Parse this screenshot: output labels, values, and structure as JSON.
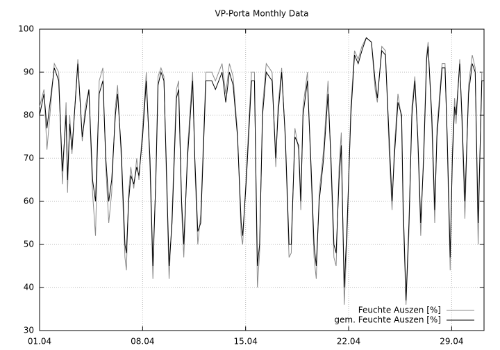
{
  "chart_data": {
    "type": "line",
    "title": "VP-Porta Monthly Data",
    "x": [
      0,
      0.3,
      0.5,
      1.0,
      1.3,
      1.55,
      1.8,
      1.9,
      2.05,
      2.2,
      2.6,
      2.9,
      3.1,
      3.35,
      3.6,
      3.8,
      4.05,
      4.3,
      4.5,
      4.7,
      4.9,
      5.15,
      5.3,
      5.55,
      5.8,
      5.9,
      6.05,
      6.2,
      6.4,
      6.6,
      6.75,
      7.0,
      7.25,
      7.5,
      7.7,
      7.9,
      8.05,
      8.25,
      8.45,
      8.6,
      8.8,
      9.0,
      9.3,
      9.45,
      9.65,
      9.8,
      10.05,
      10.4,
      10.55,
      10.75,
      10.95,
      11.3,
      11.7,
      11.95,
      12.4,
      12.65,
      12.9,
      13.15,
      13.45,
      13.7,
      13.8,
      14.05,
      14.4,
      14.6,
      14.8,
      14.95,
      15.15,
      15.4,
      15.6,
      15.8,
      16.05,
      16.2,
      16.45,
      16.7,
      16.95,
      17.1,
      17.35,
      17.6,
      17.75,
      17.9,
      18.2,
      18.45,
      18.65,
      18.8,
      19.0,
      19.3,
      19.6,
      19.8,
      20.0,
      20.15,
      20.35,
      20.5,
      20.7,
      20.9,
      21.15,
      21.4,
      21.65,
      21.9,
      22.2,
      22.55,
      22.8,
      22.95,
      23.25,
      23.5,
      23.75,
      23.95,
      24.1,
      24.35,
      24.6,
      24.7,
      24.9,
      25.1,
      25.3,
      25.5,
      25.7,
      25.9,
      26.1,
      26.3,
      26.4,
      26.65,
      26.85,
      27.0,
      27.35,
      27.55,
      27.7,
      27.9,
      28.05,
      28.2,
      28.3,
      28.55,
      28.7,
      28.9,
      29.15,
      29.4,
      29.6,
      29.8,
      30.05,
      30.2
    ],
    "series": [
      {
        "name": "Feuchte Auszen [%]",
        "color": "#888888",
        "values": [
          82,
          86,
          72,
          92,
          90,
          64,
          83,
          62,
          80,
          71,
          93,
          74,
          82,
          86,
          62,
          52,
          88,
          91,
          68,
          55,
          62,
          82,
          87,
          70,
          47,
          44,
          62,
          68,
          63,
          70,
          65,
          77,
          90,
          68,
          42,
          66,
          89,
          91,
          89,
          68,
          42,
          57,
          86,
          88,
          58,
          47,
          72,
          90,
          68,
          50,
          57,
          90,
          90,
          88,
          92,
          85,
          92,
          89,
          76,
          52,
          50,
          67,
          90,
          90,
          40,
          48,
          82,
          92,
          91,
          90,
          68,
          82,
          91,
          74,
          47,
          48,
          77,
          72,
          58,
          82,
          90,
          66,
          47,
          42,
          62,
          72,
          88,
          68,
          47,
          45,
          68,
          76,
          36,
          52,
          82,
          95,
          93,
          96,
          98,
          97,
          86,
          83,
          96,
          95,
          72,
          58,
          72,
          85,
          79,
          57,
          36,
          53,
          82,
          89,
          74,
          52,
          72,
          94,
          97,
          78,
          55,
          77,
          92,
          92,
          73,
          44,
          72,
          84,
          78,
          93,
          78,
          56,
          87,
          94,
          91,
          50,
          90,
          90
        ]
      },
      {
        "name": "gem. Feuchte Auszen [%]",
        "color": "#000000",
        "values": [
          80,
          85,
          77,
          91,
          88,
          67,
          80,
          65,
          78,
          72,
          92,
          75,
          80,
          86,
          65,
          60,
          85,
          88,
          70,
          60,
          65,
          80,
          85,
          72,
          50,
          48,
          60,
          66,
          64,
          68,
          66,
          75,
          88,
          70,
          45,
          65,
          87,
          90,
          88,
          70,
          45,
          55,
          84,
          86,
          60,
          50,
          70,
          88,
          70,
          53,
          55,
          88,
          88,
          86,
          90,
          83,
          90,
          87,
          75,
          55,
          52,
          65,
          88,
          88,
          45,
          50,
          80,
          90,
          89,
          88,
          70,
          80,
          90,
          75,
          50,
          50,
          75,
          73,
          60,
          80,
          88,
          68,
          50,
          45,
          60,
          70,
          85,
          70,
          50,
          48,
          65,
          73,
          40,
          55,
          80,
          94,
          92,
          95,
          98,
          97,
          88,
          84,
          95,
          94,
          75,
          60,
          70,
          83,
          80,
          60,
          37,
          55,
          80,
          88,
          75,
          55,
          70,
          93,
          96,
          80,
          58,
          75,
          91,
          91,
          75,
          47,
          70,
          82,
          80,
          92,
          80,
          60,
          85,
          92,
          90,
          55,
          88,
          88
        ]
      }
    ],
    "xlim": [
      0,
      30.2
    ],
    "xticks": [
      {
        "value": 0,
        "label": "01.04"
      },
      {
        "value": 7,
        "label": "08.04"
      },
      {
        "value": 14,
        "label": "15.04"
      },
      {
        "value": 21,
        "label": "22.04"
      },
      {
        "value": 28,
        "label": "29.04"
      }
    ],
    "ylim": [
      30,
      100
    ],
    "yticks": [
      30,
      40,
      50,
      60,
      70,
      80,
      90,
      100
    ],
    "grid": true,
    "legend": "bottom right"
  }
}
